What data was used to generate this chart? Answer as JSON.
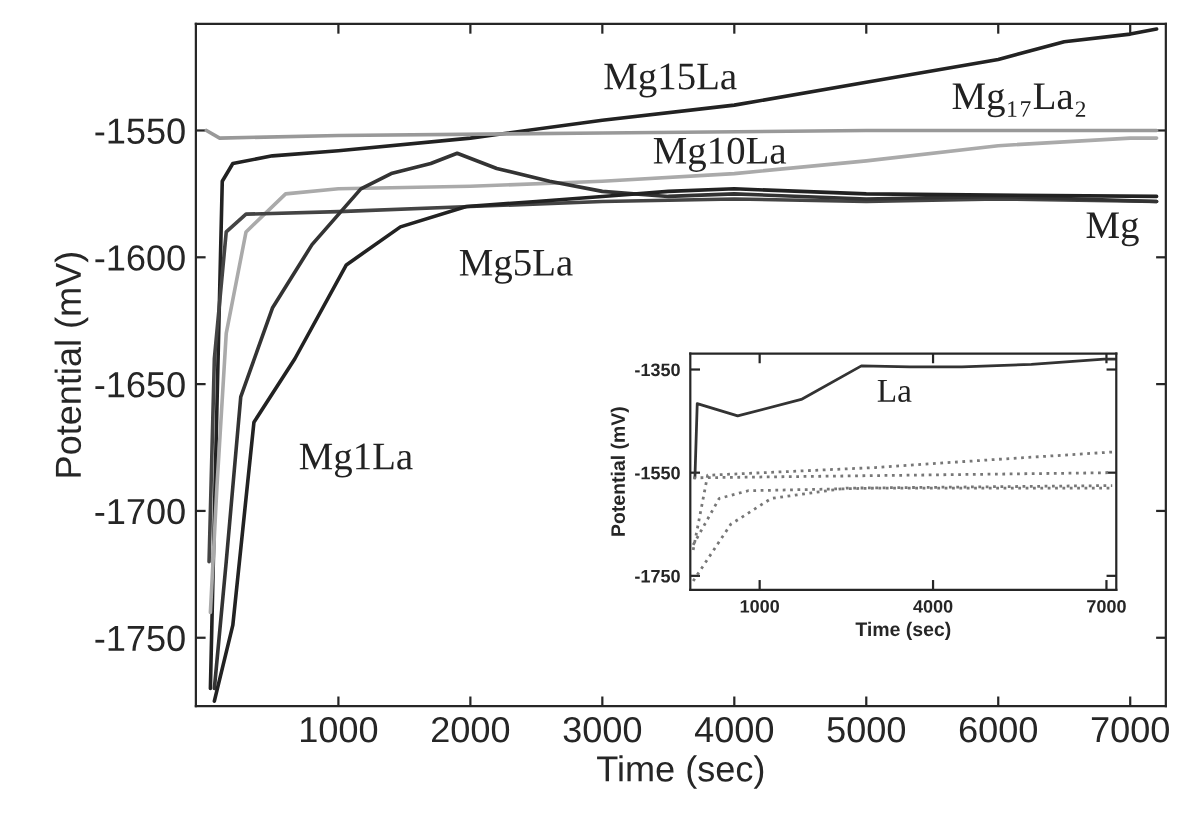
{
  "chart_data": [
    {
      "type": "line",
      "xlabel": "Time (sec)",
      "ylabel": "Potential (mV)",
      "xlim": [
        -80,
        7270
      ],
      "ylim": [
        -1777,
        -1508
      ],
      "xticks": [
        1000,
        2000,
        3000,
        4000,
        5000,
        6000,
        7000
      ],
      "yticks": [
        -1750,
        -1700,
        -1650,
        -1600,
        -1550
      ],
      "series": [
        {
          "color": "#222222",
          "x": [
            30,
            70,
            120,
            200,
            500,
            1000,
            2000,
            3000,
            4000,
            5000,
            6000,
            6500,
            7000,
            7200
          ],
          "values": [
            -1770,
            -1680,
            -1570,
            -1563,
            -1560,
            -1558,
            -1553,
            -1546,
            -1540,
            -1531,
            -1522,
            -1515,
            -1512,
            -1510
          ]
        },
        {
          "color": "#999999",
          "x": [
            0,
            100,
            1000,
            3000,
            5000,
            7200
          ],
          "values": [
            -1550,
            -1553,
            -1552,
            -1551,
            -1550,
            -1550
          ]
        },
        {
          "color": "#aaaaaa",
          "x": [
            30,
            80,
            150,
            300,
            600,
            1000,
            2000,
            3000,
            4000,
            5000,
            6000,
            7000,
            7200
          ],
          "values": [
            -1740,
            -1690,
            -1630,
            -1590,
            -1575,
            -1573,
            -1572,
            -1570,
            -1567,
            -1562,
            -1556,
            -1553,
            -1553
          ]
        },
        {
          "color": "#444444",
          "x": [
            20,
            60,
            150,
            300,
            1000,
            2000,
            3000,
            4000,
            5000,
            6000,
            7200
          ],
          "values": [
            -1720,
            -1640,
            -1590,
            -1583,
            -1582,
            -1580,
            -1578,
            -1577,
            -1578,
            -1577,
            -1578
          ]
        },
        {
          "color": "#333333",
          "x": [
            60,
            150,
            260,
            500,
            800,
            1170,
            1400,
            1700,
            1900,
            2200,
            2600,
            3000,
            3500,
            4000,
            5000,
            6000,
            7200
          ],
          "values": [
            -1770,
            -1720,
            -1655,
            -1620,
            -1595,
            -1573,
            -1567,
            -1563,
            -1559,
            -1565,
            -1570,
            -1574,
            -1576,
            -1575,
            -1577,
            -1576,
            -1578
          ]
        },
        {
          "color": "#222222",
          "x": [
            60,
            200,
            360,
            670,
            1060,
            1470,
            1970,
            2500,
            3000,
            3500,
            4000,
            5000,
            7200
          ],
          "values": [
            -1775,
            -1745,
            -1665,
            -1640,
            -1603,
            -1588,
            -1580,
            -1578,
            -1576,
            -1574,
            -1573,
            -1575,
            -1576
          ]
        }
      ],
      "annotations": [
        "Mg15La",
        "Mg₁₇La₂",
        "Mg10La",
        "Mg",
        "Mg5La",
        "Mg1La"
      ],
      "line_style": "solid",
      "legend": false
    },
    {
      "type": "line",
      "xlabel": "Time (sec)",
      "ylabel": "Potential (mV)",
      "xlim": [
        -200,
        7170
      ],
      "ylim": [
        -1777,
        -1319
      ],
      "xticks": [
        1000,
        4000,
        7000
      ],
      "yticks": [
        -1750,
        -1550,
        -1350
      ],
      "series": [
        {
          "color": "#333333",
          "line_style": "solid",
          "x": [
            -120,
            -80,
            620,
            1720,
            2760,
            3600,
            4500,
            5700,
            6960,
            7150
          ],
          "values": [
            -1560,
            -1416,
            -1440,
            -1408,
            -1343,
            -1345,
            -1345,
            -1340,
            -1330,
            -1330
          ]
        },
        {
          "color": "#777777",
          "line_style": "dotted",
          "x": [
            -150,
            100,
            3000,
            5000,
            7100
          ],
          "values": [
            -1700,
            -1555,
            -1540,
            -1525,
            -1510
          ]
        },
        {
          "color": "#777777",
          "line_style": "dotted",
          "x": [
            -150,
            7100
          ],
          "values": [
            -1560,
            -1550
          ]
        },
        {
          "color": "#777777",
          "line_style": "dotted",
          "x": [
            -150,
            300,
            800,
            3000,
            7100
          ],
          "values": [
            -1690,
            -1600,
            -1585,
            -1580,
            -1580
          ]
        },
        {
          "color": "#777777",
          "line_style": "dotted",
          "x": [
            -150,
            500,
            1200,
            2500,
            7100
          ],
          "values": [
            -1760,
            -1650,
            -1600,
            -1580,
            -1575
          ]
        }
      ],
      "annotations": [
        "La"
      ],
      "legend": false
    }
  ]
}
